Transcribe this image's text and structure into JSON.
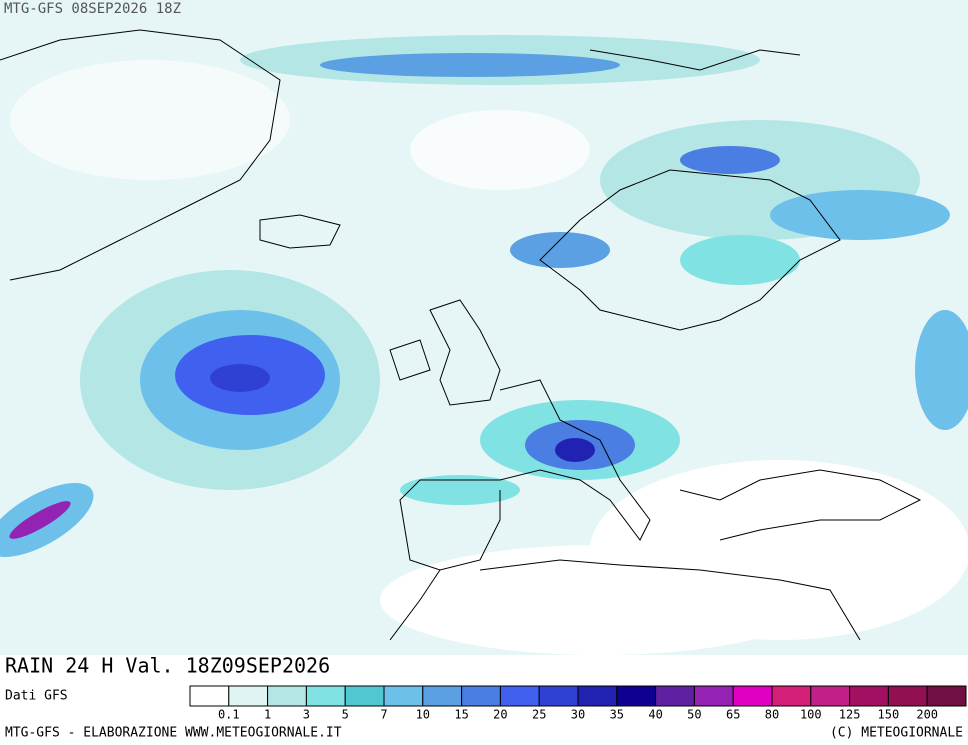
{
  "header": {
    "run": "MTG-GFS 08SEP2026 18Z"
  },
  "map": {
    "title": "RAIN 24 H Val. 18Z09SEP2026"
  },
  "legend": {
    "source": "Dati GFS",
    "labels": [
      0.1,
      1,
      3,
      5,
      7,
      10,
      15,
      20,
      25,
      30,
      35,
      40,
      50,
      65,
      80,
      100,
      125,
      150,
      200
    ],
    "colors": [
      "#ffffff",
      "#e0f4f4",
      "#b4e6e6",
      "#80e2e2",
      "#50c8d2",
      "#6cc0ea",
      "#5aa0e2",
      "#4a7ee2",
      "#4060f0",
      "#3040d2",
      "#2222b2",
      "#100092",
      "#6020a2",
      "#9422b2",
      "#e000c2",
      "#d42078",
      "#c22088",
      "#a21062",
      "#901052",
      "#701042"
    ]
  },
  "footer": {
    "left": "MTG-GFS - ELABORAZIONE WWW.METEOGIORNALE.IT",
    "right": "(C) METEOGIORNALE"
  }
}
